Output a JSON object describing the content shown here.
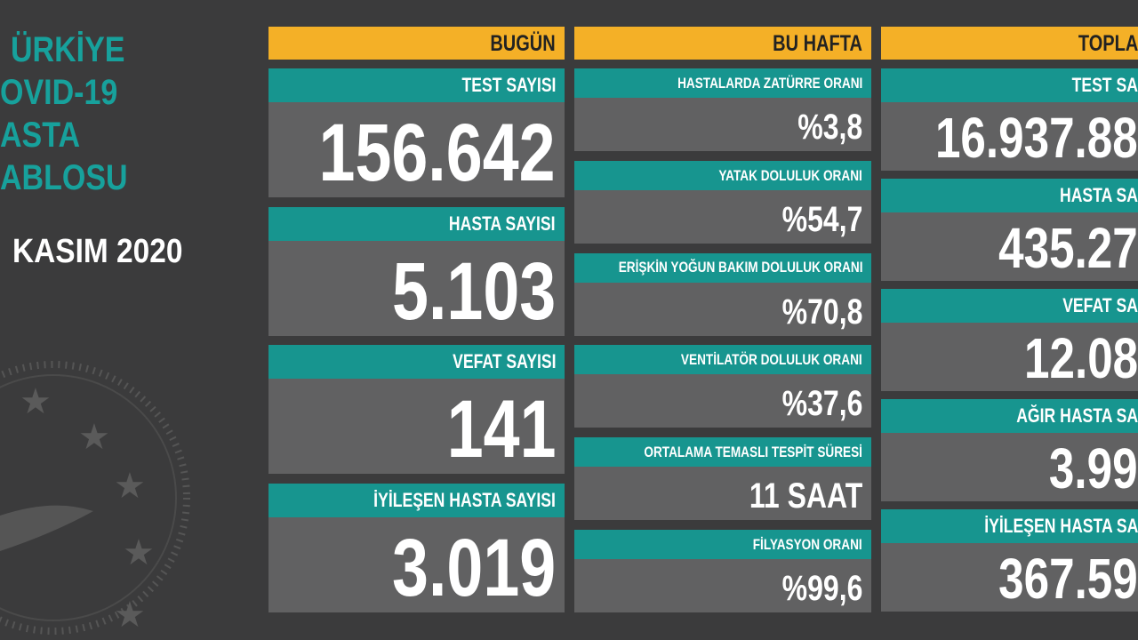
{
  "sidebar": {
    "title_lines": [
      "ÜRKİYE",
      "OVID-19",
      "ASTA",
      "ABLOSU"
    ],
    "date": "KASIM 2020"
  },
  "columns": [
    {
      "header": "BUGÜN",
      "cards": [
        {
          "label": "TEST SAYISI",
          "value": "156.642"
        },
        {
          "label": "HASTA SAYISI",
          "value": "5.103"
        },
        {
          "label": "VEFAT SAYISI",
          "value": "141"
        },
        {
          "label": "İYİLEŞEN HASTA SAYISI",
          "value": "3.019"
        }
      ]
    },
    {
      "header": "BU HAFTA",
      "cards": [
        {
          "label": "HASTALARDA ZATÜRRE ORANI",
          "value": "%3,8"
        },
        {
          "label": "YATAK DOLULUK ORANI",
          "value": "%54,7"
        },
        {
          "label": "ERİŞKİN YOĞUN BAKIM DOLULUK ORANI",
          "value": "%70,8"
        },
        {
          "label": "VENTİLATÖR DOLULUK ORANI",
          "value": "%37,6"
        },
        {
          "label": "ORTALAMA TEMASLI TESPİT SÜRESİ",
          "value": "11 SAAT"
        },
        {
          "label": "FİLYASYON ORANI",
          "value": "%99,6"
        }
      ]
    },
    {
      "header": "TOPLA",
      "cards": [
        {
          "label": "TEST SA",
          "value": "16.937.88"
        },
        {
          "label": "HASTA SA",
          "value": "435.27"
        },
        {
          "label": "VEFAT SA",
          "value": "12.08"
        },
        {
          "label": "AĞIR HASTA SA",
          "value": "3.99"
        },
        {
          "label": "İYİLEŞEN HASTA SA",
          "value": "367.59"
        }
      ]
    }
  ]
}
